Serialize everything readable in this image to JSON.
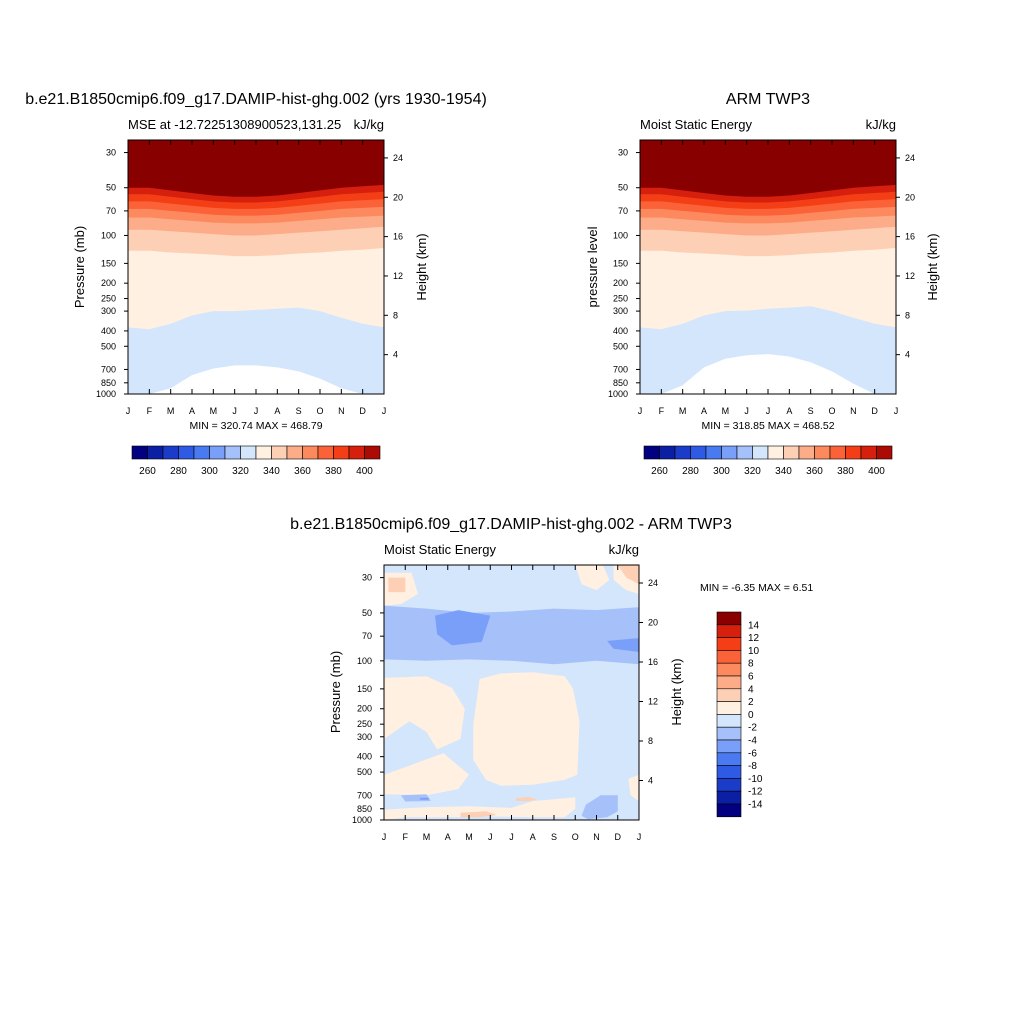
{
  "panels": [
    {
      "title": "b.e21.B1850cmip6.f09_g17.DAMIP-hist-ghg.002 (yrs 1930-1954)",
      "left_label": "MSE at -12.72251308900523,131.25",
      "right_label": "kJ/kg",
      "ylabel": "Pressure (mb)",
      "ylabel_right": "Height (km)",
      "minmax": "MIN = 320.74 MAX = 468.79"
    },
    {
      "title": "ARM TWP3",
      "left_label": "Moist Static Energy",
      "right_label": "kJ/kg",
      "ylabel": "pressure level",
      "ylabel_right": "Height (km)",
      "minmax": "MIN = 318.85 MAX = 468.52"
    },
    {
      "title": "b.e21.B1850cmip6.f09_g17.DAMIP-hist-ghg.002 - ARM TWP3",
      "left_label": "Moist Static Energy",
      "right_label": "kJ/kg",
      "ylabel": "Pressure (mb)",
      "ylabel_right": "Height (km)",
      "minmax": "MIN =  -6.35 MAX =   6.51"
    }
  ],
  "chart_data": [
    {
      "type": "heatmap",
      "subtype": "filled-contour",
      "title": "b.e21.B1850cmip6.f09_g17.DAMIP-hist-ghg.002 (yrs 1930-1954)",
      "variable": "MSE at -12.72251308900523,131.25",
      "units": "kJ/kg",
      "x_ticks": [
        "J",
        "F",
        "M",
        "A",
        "M",
        "J",
        "J",
        "A",
        "S",
        "O",
        "N",
        "D",
        "J"
      ],
      "y_ticks": [
        "30",
        "50",
        "70",
        "100",
        "150",
        "200",
        "250",
        "300",
        "400",
        "500",
        "700",
        "850",
        "1000"
      ],
      "y_scale": "log",
      "y_reversed": true,
      "ylim": [
        1000,
        25
      ],
      "right_ticks": [
        "24",
        "20",
        "16",
        "12",
        "8",
        "4"
      ],
      "min": 320.74,
      "max": 468.79,
      "levels": [
        260,
        270,
        280,
        290,
        300,
        310,
        320,
        330,
        340,
        350,
        360,
        370,
        380,
        390,
        400
      ],
      "colorbar_labels": [
        "260",
        "280",
        "300",
        "320",
        "340",
        "360",
        "380",
        "400"
      ],
      "contours": [
        {
          "band": "<330",
          "top": [
            1000,
            1000,
            920,
            760,
            690,
            660,
            660,
            680,
            720,
            800,
            920,
            1000,
            1000
          ]
        },
        {
          "band": "330-340",
          "top": [
            380,
            390,
            360,
            320,
            300,
            300,
            295,
            290,
            285,
            300,
            330,
            360,
            380
          ]
        },
        {
          "band": "340-350",
          "top": [
            125,
            125,
            128,
            130,
            132,
            135,
            135,
            133,
            130,
            128,
            125,
            123,
            120
          ]
        },
        {
          "band": "350-360",
          "top": [
            92,
            92,
            94,
            96,
            98,
            100,
            100,
            98,
            96,
            94,
            92,
            90,
            88
          ]
        },
        {
          "band": "360-370",
          "top": [
            77,
            77,
            79,
            81,
            83,
            84,
            84,
            83,
            81,
            79,
            77,
            76,
            75
          ]
        },
        {
          "band": "370-380",
          "top": [
            68,
            68,
            70,
            72,
            74,
            75,
            75,
            74,
            72,
            70,
            68,
            67,
            66
          ]
        },
        {
          "band": "380-390",
          "top": [
            61,
            61,
            63,
            65,
            67,
            68,
            68,
            67,
            65,
            63,
            61,
            60,
            59
          ]
        },
        {
          "band": "390-400",
          "top": [
            55,
            55,
            57,
            59,
            61,
            62,
            62,
            61,
            59,
            57,
            55,
            54,
            53
          ]
        },
        {
          "band": ">400",
          "top": [
            50,
            50,
            52,
            54,
            56,
            57,
            57,
            56,
            54,
            52,
            50,
            49,
            48
          ]
        }
      ]
    },
    {
      "type": "heatmap",
      "subtype": "filled-contour",
      "title": "ARM TWP3",
      "variable": "Moist Static Energy",
      "units": "kJ/kg",
      "x_ticks": [
        "J",
        "F",
        "M",
        "A",
        "M",
        "J",
        "J",
        "A",
        "S",
        "O",
        "N",
        "D",
        "J"
      ],
      "y_ticks": [
        "30",
        "50",
        "70",
        "100",
        "150",
        "200",
        "250",
        "300",
        "400",
        "500",
        "700",
        "850",
        "1000"
      ],
      "y_scale": "log",
      "y_reversed": true,
      "ylim": [
        1000,
        25
      ],
      "right_ticks": [
        "24",
        "20",
        "16",
        "12",
        "8",
        "4"
      ],
      "min": 318.85,
      "max": 468.52,
      "levels": [
        260,
        270,
        280,
        290,
        300,
        310,
        320,
        330,
        340,
        350,
        360,
        370,
        380,
        390,
        400
      ],
      "colorbar_labels": [
        "260",
        "280",
        "300",
        "320",
        "340",
        "360",
        "380",
        "400"
      ],
      "contours": [
        {
          "band": "<330",
          "top": [
            1000,
            1000,
            880,
            680,
            600,
            570,
            560,
            580,
            630,
            720,
            860,
            1000,
            1000
          ]
        },
        {
          "band": "330-340",
          "top": [
            380,
            390,
            360,
            320,
            300,
            298,
            290,
            285,
            280,
            300,
            330,
            360,
            380
          ]
        },
        {
          "band": "340-350",
          "top": [
            125,
            125,
            128,
            130,
            132,
            135,
            135,
            133,
            130,
            128,
            125,
            123,
            120
          ]
        },
        {
          "band": "350-360",
          "top": [
            92,
            92,
            94,
            96,
            98,
            100,
            100,
            98,
            96,
            94,
            92,
            90,
            88
          ]
        },
        {
          "band": "360-370",
          "top": [
            77,
            77,
            79,
            81,
            83,
            84,
            84,
            83,
            81,
            79,
            77,
            76,
            75
          ]
        },
        {
          "band": "370-380",
          "top": [
            68,
            68,
            70,
            72,
            74,
            75,
            75,
            74,
            72,
            70,
            68,
            67,
            66
          ]
        },
        {
          "band": "380-390",
          "top": [
            61,
            61,
            63,
            65,
            67,
            68,
            68,
            67,
            65,
            63,
            61,
            60,
            59
          ]
        },
        {
          "band": "390-400",
          "top": [
            55,
            55,
            57,
            59,
            61,
            62,
            62,
            61,
            59,
            57,
            55,
            54,
            53
          ]
        },
        {
          "band": ">400",
          "top": [
            50,
            50,
            52,
            54,
            56,
            57,
            57,
            56,
            54,
            52,
            50,
            49,
            48
          ]
        }
      ]
    },
    {
      "type": "heatmap",
      "subtype": "filled-contour",
      "title": "b.e21.B1850cmip6.f09_g17.DAMIP-hist-ghg.002 - ARM TWP3",
      "variable": "Moist Static Energy",
      "units": "kJ/kg",
      "x_ticks": [
        "J",
        "F",
        "M",
        "A",
        "M",
        "J",
        "J",
        "A",
        "S",
        "O",
        "N",
        "D",
        "J"
      ],
      "y_ticks": [
        "30",
        "50",
        "70",
        "100",
        "150",
        "200",
        "250",
        "300",
        "400",
        "500",
        "700",
        "850",
        "1000"
      ],
      "y_scale": "log",
      "y_reversed": true,
      "ylim": [
        1000,
        25
      ],
      "right_ticks": [
        "24",
        "20",
        "16",
        "12",
        "8",
        "4"
      ],
      "min": -6.35,
      "max": 6.51,
      "levels": [
        -14,
        -12,
        -10,
        -8,
        -6,
        -4,
        -2,
        0,
        2,
        4,
        6,
        8,
        10,
        12,
        14
      ],
      "colorbar_labels": [
        "14",
        "12",
        "10",
        "8",
        "6",
        "4",
        "2",
        "0",
        "-2",
        "-4",
        "-6",
        "-8",
        "-10",
        "-12",
        "-14"
      ],
      "background_band": "-2-0",
      "regions": [
        {
          "band": "0-2",
          "ring": [
            [
              0,
              28
            ],
            [
              1.3,
              28
            ],
            [
              1.6,
              38
            ],
            [
              0.8,
              44
            ],
            [
              0,
              45
            ]
          ]
        },
        {
          "band": "2-4",
          "ring": [
            [
              0.2,
              30
            ],
            [
              1,
              30
            ],
            [
              1,
              37
            ],
            [
              0.2,
              37
            ]
          ]
        },
        {
          "band": "0-2",
          "ring": [
            [
              9,
              25
            ],
            [
              10.3,
              25
            ],
            [
              10.6,
              31
            ],
            [
              10,
              36
            ],
            [
              9.3,
              33
            ]
          ]
        },
        {
          "band": "0-2",
          "ring": [
            [
              10.8,
              25
            ],
            [
              12,
              25
            ],
            [
              12,
              38
            ],
            [
              11.4,
              36
            ],
            [
              10.8,
              31
            ]
          ]
        },
        {
          "band": "2-4",
          "ring": [
            [
              11,
              25
            ],
            [
              12,
              25
            ],
            [
              12,
              33
            ],
            [
              11.4,
              30
            ]
          ]
        },
        {
          "band": "-4--2",
          "ring": [
            [
              0,
              45
            ],
            [
              2,
              47
            ],
            [
              4,
              50
            ],
            [
              6,
              49
            ],
            [
              8,
              47
            ],
            [
              10,
              48
            ],
            [
              12,
              46
            ],
            [
              12,
              105
            ],
            [
              10,
              100
            ],
            [
              8,
              105
            ],
            [
              6,
              100
            ],
            [
              4,
              98
            ],
            [
              2,
              100
            ],
            [
              0,
              98
            ]
          ]
        },
        {
          "band": "-6--4",
          "ring": [
            [
              2.4,
              52
            ],
            [
              3.5,
              48
            ],
            [
              5,
              52
            ],
            [
              4.6,
              76
            ],
            [
              3.2,
              80
            ],
            [
              2.5,
              68
            ]
          ]
        },
        {
          "band": "-6--4",
          "ring": [
            [
              10.5,
              75
            ],
            [
              12,
              72
            ],
            [
              12,
              88
            ],
            [
              10.8,
              84
            ]
          ]
        },
        {
          "band": "0-2",
          "ring": [
            [
              0,
              128
            ],
            [
              2,
              125
            ],
            [
              3.2,
              148
            ],
            [
              3.8,
              200
            ],
            [
              3.6,
              310
            ],
            [
              2.5,
              360
            ],
            [
              2,
              280
            ],
            [
              1.2,
              240
            ],
            [
              0,
              310
            ]
          ]
        },
        {
          "band": "0-2",
          "ring": [
            [
              4.5,
              130
            ],
            [
              5.5,
              120
            ],
            [
              7,
              118
            ],
            [
              8.5,
              125
            ],
            [
              8.9,
              150
            ],
            [
              9.2,
              240
            ],
            [
              9.1,
              520
            ],
            [
              8.5,
              560
            ],
            [
              7,
              600
            ],
            [
              5.5,
              610
            ],
            [
              4.8,
              560
            ],
            [
              4.2,
              420
            ],
            [
              4.2,
              250
            ]
          ]
        },
        {
          "band": "0-2",
          "ring": [
            [
              0,
              520
            ],
            [
              1.5,
              440
            ],
            [
              2.8,
              380
            ],
            [
              4,
              520
            ],
            [
              3.5,
              640
            ],
            [
              2,
              700
            ],
            [
              0,
              690
            ]
          ]
        },
        {
          "band": "0-2",
          "ring": [
            [
              0,
              860
            ],
            [
              2,
              830
            ],
            [
              4,
              820
            ],
            [
              6,
              840
            ],
            [
              7,
              760
            ],
            [
              8,
              740
            ],
            [
              9,
              720
            ],
            [
              9,
              850
            ],
            [
              8.5,
              960
            ],
            [
              7,
              960
            ],
            [
              5,
              950
            ],
            [
              3,
              960
            ],
            [
              1,
              960
            ],
            [
              0,
              1000
            ]
          ]
        },
        {
          "band": "2-4",
          "ring": [
            [
              3.6,
              900
            ],
            [
              4.8,
              880
            ],
            [
              5.3,
              930
            ],
            [
              4.5,
              960
            ],
            [
              3.6,
              960
            ]
          ]
        },
        {
          "band": "2-4",
          "ring": [
            [
              6.2,
              730
            ],
            [
              6.8,
              715
            ],
            [
              7.2,
              745
            ],
            [
              6.8,
              760
            ],
            [
              6.2,
              760
            ]
          ]
        },
        {
          "band": "-4--2",
          "ring": [
            [
              0.8,
              700
            ],
            [
              2,
              690
            ],
            [
              2.2,
              760
            ],
            [
              1,
              765
            ]
          ]
        },
        {
          "band": "-6--4",
          "ring": [
            [
              1.7,
              725
            ],
            [
              2.1,
              725
            ],
            [
              2.1,
              745
            ],
            [
              1.7,
              745
            ]
          ]
        },
        {
          "band": "-4--2",
          "ring": [
            [
              9.3,
              940
            ],
            [
              9.5,
              800
            ],
            [
              10.2,
              700
            ],
            [
              11,
              700
            ],
            [
              11,
              880
            ],
            [
              10.5,
              960
            ],
            [
              9.6,
              990
            ]
          ]
        },
        {
          "band": "0-2",
          "ring": [
            [
              11.5,
              550
            ],
            [
              12,
              520
            ],
            [
              12,
              760
            ],
            [
              11.6,
              700
            ]
          ]
        }
      ]
    }
  ],
  "colors": {
    "levels_abs": [
      "#020080",
      "#0a1fa3",
      "#1a3cc8",
      "#2f5ae4",
      "#4a7af2",
      "#7a9ff8",
      "#a6c0fa",
      "#d3e6fc",
      "#fff0e1",
      "#fdd0b6",
      "#fcac88",
      "#fc8a5e",
      "#fb6237",
      "#f43f16",
      "#d61f0c",
      "#ac0a05",
      "#880000"
    ],
    "diff_levels": [
      "#020080",
      "#0a1fa3",
      "#1a3cc8",
      "#2f5ae4",
      "#4a7af2",
      "#7a9ff8",
      "#a6c0fa",
      "#d3e6fc",
      "#fff0e1",
      "#fdd0b6",
      "#fcac88",
      "#fc8a5e",
      "#fb6237",
      "#f43f16",
      "#d61f0c",
      "#880000"
    ]
  }
}
